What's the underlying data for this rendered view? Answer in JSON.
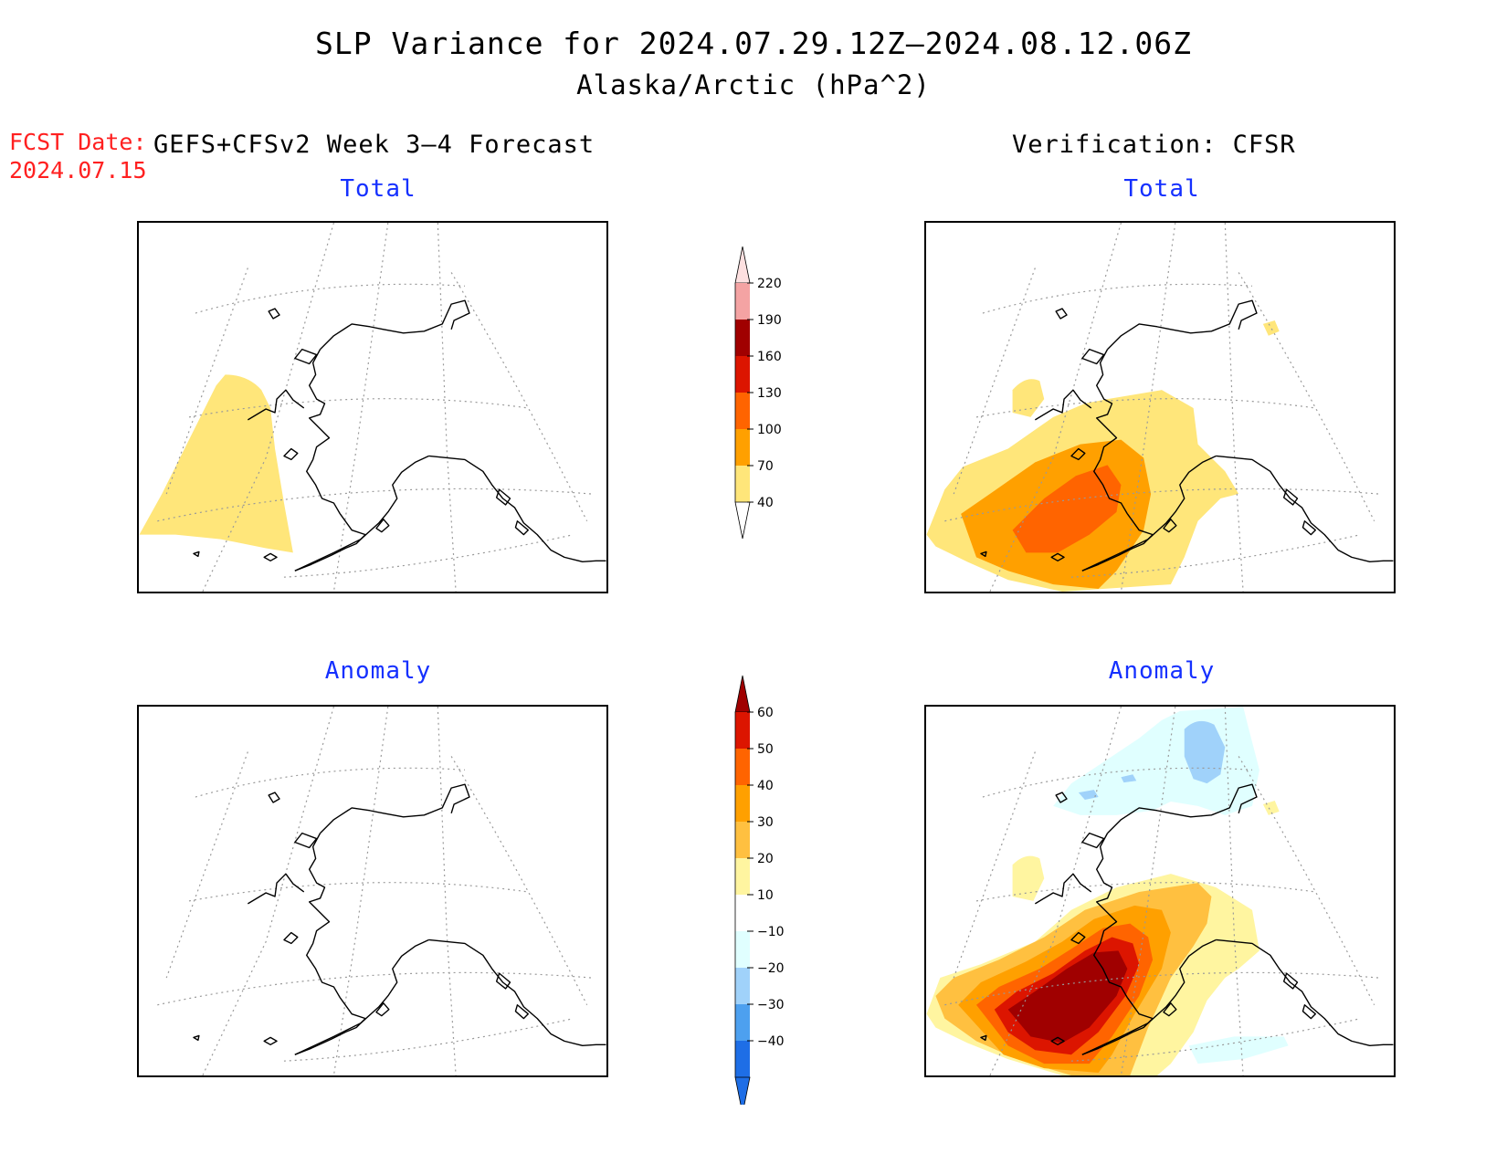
{
  "header": {
    "title": "SLP Variance for 2024.07.29.12Z–2024.08.12.06Z",
    "subtitle": "Alaska/Arctic (hPa^2)",
    "fcst_label": "FCST Date:",
    "fcst_date": "2024.07.15",
    "model_label": "GEFS+CFSv2 Week 3–4 Forecast",
    "verification_label": "Verification: CFSR"
  },
  "panels": {
    "forecast_total": "Total",
    "verification_total": "Total",
    "forecast_anomaly": "Anomaly",
    "verification_anomaly": "Anomaly"
  },
  "colorbar_total": {
    "labels": [
      "220",
      "190",
      "160",
      "130",
      "100",
      "70",
      "40"
    ],
    "colors": [
      "#f4a3a3",
      "#a00000",
      "#dc1500",
      "#ff6400",
      "#ffa000",
      "#ffe67a"
    ],
    "top_color": "#fde0e0"
  },
  "colorbar_anomaly": {
    "labels": [
      "60",
      "50",
      "40",
      "30",
      "20",
      "10",
      "−10",
      "−20",
      "−30",
      "−40"
    ],
    "colors": [
      "#dc1500",
      "#ff6400",
      "#ffa000",
      "#ffc040",
      "#fff5a0",
      "#ffffff",
      "#e0ffff",
      "#a0d2fa",
      "#4da0ef",
      "#1e6ee6"
    ],
    "top_color": "#a00000",
    "bottom_color": "#1e6ee6"
  }
}
